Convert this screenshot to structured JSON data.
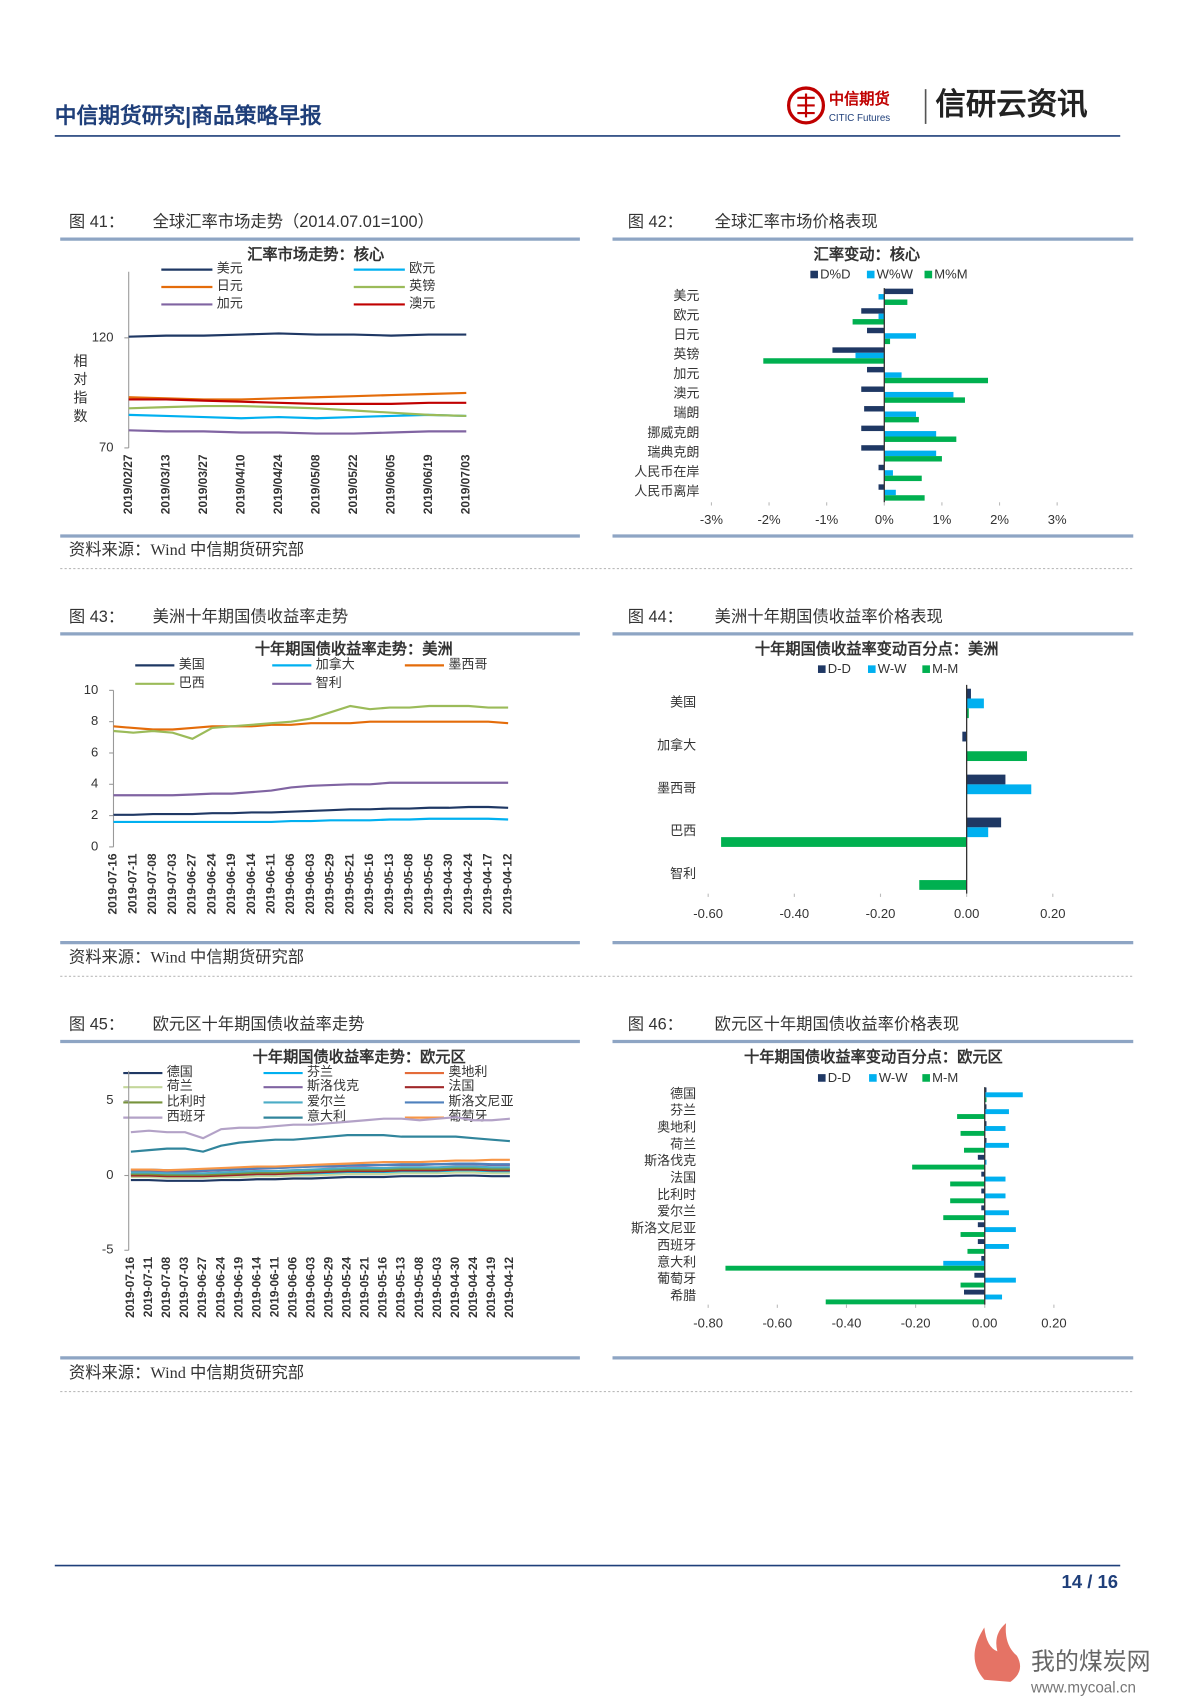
{
  "header": {
    "title": "中信期货研究|商品策略早报",
    "brand": "中信期货",
    "brand_en": "CITIC Futures",
    "slogan": "信研云资讯"
  },
  "figures": [
    {
      "number": "图 41：",
      "caption": "全球汇率市场走势（2014.07.01=100）",
      "source": "资料来源：Wind  中信期货研究部"
    },
    {
      "number": "图 42：",
      "caption": "全球汇率市场价格表现"
    },
    {
      "number": "图 43：",
      "caption": "美洲十年期国债收益率走势",
      "source": "资料来源：Wind  中信期货研究部"
    },
    {
      "number": "图 44：",
      "caption": "美洲十年期国债收益率价格表现"
    },
    {
      "number": "图 45：",
      "caption": "欧元区十年期国债收益率走势",
      "source": "资料来源：Wind  中信期货研究部"
    },
    {
      "number": "图 46：",
      "caption": "欧元区十年期国债收益率价格表现"
    }
  ],
  "chart_data": [
    {
      "type": "line",
      "title": "汇率市场走势：核心",
      "ylabel": "相对指数",
      "categories": [
        "2019/02/27",
        "2019/03/13",
        "2019/03/27",
        "2019/04/10",
        "2019/04/24",
        "2019/05/08",
        "2019/05/22",
        "2019/06/05",
        "2019/06/19",
        "2019/07/03"
      ],
      "ylim": [
        70,
        150
      ],
      "yticks": [
        70,
        120
      ],
      "series": [
        {
          "name": "美元",
          "color": "#1f3864",
          "values": [
            120.5,
            121,
            121,
            121.5,
            122,
            121.5,
            121.5,
            121,
            121.5,
            121.5
          ]
        },
        {
          "name": "欧元",
          "color": "#00b0f0",
          "values": [
            85,
            84.5,
            84,
            83.5,
            84,
            83.5,
            84,
            84.5,
            85,
            84.5
          ]
        },
        {
          "name": "日元",
          "color": "#e46c0a",
          "values": [
            93,
            92.5,
            92,
            92,
            92.5,
            93,
            93.5,
            94,
            94.5,
            95
          ]
        },
        {
          "name": "英镑",
          "color": "#9bbb59",
          "values": [
            88,
            88.5,
            89,
            89,
            88.5,
            88,
            87,
            86,
            85,
            84.5
          ]
        },
        {
          "name": "加元",
          "color": "#8064a2",
          "values": [
            78,
            77.5,
            77.5,
            77,
            77,
            76.5,
            76.5,
            77,
            77.5,
            77.5
          ]
        },
        {
          "name": "澳元",
          "color": "#c00000",
          "values": [
            92,
            92,
            91.5,
            91,
            90.5,
            90,
            90,
            90,
            90.5,
            90.5
          ]
        }
      ]
    },
    {
      "type": "hbar",
      "title": "汇率变动：核心",
      "categories": [
        "美元",
        "欧元",
        "日元",
        "英镑",
        "加元",
        "澳元",
        "瑞朗",
        "挪威克朗",
        "瑞典克朗",
        "人民币在岸",
        "人民币离岸"
      ],
      "xlim": [
        -3,
        3
      ],
      "xticks": [
        {
          "value": -3,
          "label": "-3%"
        },
        {
          "value": -2,
          "label": "-2%"
        },
        {
          "value": -1,
          "label": "-1%"
        },
        {
          "value": 0,
          "label": "0%"
        },
        {
          "value": 1,
          "label": "1%"
        },
        {
          "value": 2,
          "label": "2%"
        },
        {
          "value": 3,
          "label": "3%"
        }
      ],
      "series": [
        {
          "name": "D%D",
          "color": "#1f3864",
          "values": [
            0.5,
            -0.4,
            -0.3,
            -0.9,
            -0.3,
            -0.4,
            -0.35,
            -0.4,
            -0.4,
            -0.1,
            -0.1
          ]
        },
        {
          "name": "W%W",
          "color": "#00b0f0",
          "values": [
            -0.1,
            -0.1,
            0.55,
            -0.5,
            0.3,
            1.2,
            0.55,
            0.9,
            0.9,
            0.15,
            0.2
          ]
        },
        {
          "name": "M%M",
          "color": "#00b050",
          "values": [
            0.4,
            -0.55,
            0.1,
            -2.1,
            1.8,
            1.4,
            0.6,
            1.25,
            1.0,
            0.65,
            0.7
          ]
        }
      ]
    },
    {
      "type": "line",
      "title": "十年期国债收益率走势：美洲",
      "categories": [
        "2019-07-16",
        "2019-07-11",
        "2019-07-08",
        "2019-07-03",
        "2019-06-27",
        "2019-06-24",
        "2019-06-19",
        "2019-06-14",
        "2019-06-11",
        "2019-06-06",
        "2019-06-03",
        "2019-05-29",
        "2019-05-21",
        "2019-05-16",
        "2019-05-13",
        "2019-05-08",
        "2019-05-05",
        "2019-04-30",
        "2019-04-24",
        "2019-04-17",
        "2019-04-12"
      ],
      "ylim": [
        0,
        10
      ],
      "yticks": [
        0,
        2,
        4,
        6,
        8,
        10
      ],
      "series": [
        {
          "name": "美国",
          "color": "#1f3864",
          "values": [
            2.05,
            2.05,
            2.1,
            2.1,
            2.1,
            2.15,
            2.15,
            2.2,
            2.2,
            2.25,
            2.3,
            2.35,
            2.4,
            2.4,
            2.45,
            2.45,
            2.5,
            2.5,
            2.55,
            2.55,
            2.5
          ]
        },
        {
          "name": "加拿大",
          "color": "#00b0f0",
          "values": [
            1.6,
            1.6,
            1.6,
            1.6,
            1.6,
            1.6,
            1.6,
            1.6,
            1.6,
            1.65,
            1.65,
            1.7,
            1.7,
            1.7,
            1.75,
            1.75,
            1.8,
            1.8,
            1.8,
            1.8,
            1.75
          ]
        },
        {
          "name": "墨西哥",
          "color": "#e46c0a",
          "values": [
            7.7,
            7.6,
            7.5,
            7.5,
            7.6,
            7.7,
            7.7,
            7.7,
            7.8,
            7.8,
            7.9,
            7.9,
            7.9,
            8,
            8,
            8,
            8,
            8,
            8,
            8,
            7.9
          ]
        },
        {
          "name": "巴西",
          "color": "#9bbb59",
          "values": [
            7.4,
            7.3,
            7.4,
            7.3,
            6.9,
            7.6,
            7.7,
            7.8,
            7.9,
            8.0,
            8.2,
            8.6,
            9.0,
            8.8,
            8.9,
            8.9,
            9.0,
            9.0,
            9.0,
            8.9,
            8.9
          ]
        },
        {
          "name": "智利",
          "color": "#8064a2",
          "values": [
            3.3,
            3.3,
            3.3,
            3.3,
            3.35,
            3.4,
            3.4,
            3.5,
            3.6,
            3.8,
            3.9,
            3.95,
            4.0,
            4.0,
            4.1,
            4.1,
            4.1,
            4.1,
            4.1,
            4.1,
            4.1
          ]
        }
      ]
    },
    {
      "type": "hbar",
      "title": "十年期国债收益率变动百分点：美洲",
      "categories": [
        "美国",
        "加拿大",
        "墨西哥",
        "巴西",
        "智利"
      ],
      "xlim": [
        -0.6,
        0.2
      ],
      "xticks": [
        {
          "value": -0.6,
          "label": "-0.60"
        },
        {
          "value": -0.4,
          "label": "-0.40"
        },
        {
          "value": -0.2,
          "label": "-0.20"
        },
        {
          "value": 0,
          "label": "0.00"
        },
        {
          "value": 0.2,
          "label": "0.20"
        }
      ],
      "series": [
        {
          "name": "D-D",
          "color": "#1f3864",
          "values": [
            0.01,
            -0.01,
            0.09,
            0.08,
            0
          ]
        },
        {
          "name": "W-W",
          "color": "#00b0f0",
          "values": [
            0.04,
            0,
            0.15,
            0.05,
            0
          ]
        },
        {
          "name": "M-M",
          "color": "#00b050",
          "values": [
            0.005,
            0.14,
            0,
            -0.57,
            -0.11
          ]
        }
      ]
    },
    {
      "type": "line",
      "title": "十年期国债收益率走势：欧元区",
      "categories": [
        "2019-07-16",
        "2019-07-11",
        "2019-07-08",
        "2019-07-03",
        "2019-06-27",
        "2019-06-24",
        "2019-06-19",
        "2019-06-14",
        "2019-06-11",
        "2019-06-06",
        "2019-06-03",
        "2019-05-29",
        "2019-05-24",
        "2019-05-21",
        "2019-05-16",
        "2019-05-13",
        "2019-05-08",
        "2019-05-03",
        "2019-04-30",
        "2019-04-24",
        "2019-04-19",
        "2019-04-12"
      ],
      "ylim": [
        -5,
        7
      ],
      "yticks": [
        -5,
        0,
        5
      ],
      "series": [
        {
          "name": "德国",
          "color": "#1f3864",
          "values": [
            -0.3,
            -0.3,
            -0.35,
            -0.35,
            -0.35,
            -0.3,
            -0.3,
            -0.25,
            -0.25,
            -0.2,
            -0.2,
            -0.15,
            -0.1,
            -0.1,
            -0.1,
            -0.05,
            -0.05,
            -0.05,
            0,
            0,
            -0.05,
            -0.05
          ]
        },
        {
          "name": "芬兰",
          "color": "#00b0f0",
          "values": [
            0,
            0,
            -0.05,
            -0.05,
            -0.05,
            0,
            0,
            0.05,
            0.05,
            0.1,
            0.1,
            0.15,
            0.2,
            0.2,
            0.2,
            0.25,
            0.25,
            0.25,
            0.3,
            0.3,
            0.25,
            0.25
          ]
        },
        {
          "name": "奥地利",
          "color": "#e46c3a",
          "values": [
            0.1,
            0.1,
            0.05,
            0.05,
            0.05,
            0.1,
            0.1,
            0.15,
            0.15,
            0.2,
            0.2,
            0.25,
            0.3,
            0.3,
            0.3,
            0.35,
            0.35,
            0.35,
            0.4,
            0.4,
            0.35,
            0.35
          ]
        },
        {
          "name": "荷兰",
          "color": "#c4d79b",
          "values": [
            -0.1,
            -0.1,
            -0.15,
            -0.15,
            -0.15,
            -0.1,
            -0.1,
            -0.05,
            -0.05,
            0,
            0,
            0.05,
            0.1,
            0.1,
            0.1,
            0.15,
            0.15,
            0.15,
            0.2,
            0.2,
            0.15,
            0.15
          ]
        },
        {
          "name": "斯洛伐克",
          "color": "#8064a2",
          "values": [
            0.3,
            0.3,
            0.25,
            0.25,
            0.3,
            0.35,
            0.4,
            0.45,
            0.5,
            0.55,
            0.6,
            0.6,
            0.65,
            0.65,
            0.7,
            0.7,
            0.7,
            0.75,
            0.75,
            0.75,
            0.7,
            0.7
          ]
        },
        {
          "name": "法国",
          "color": "#a0282a",
          "values": [
            0,
            0,
            -0.05,
            -0.05,
            -0.05,
            0,
            0.05,
            0.1,
            0.1,
            0.15,
            0.2,
            0.25,
            0.3,
            0.3,
            0.3,
            0.35,
            0.35,
            0.35,
            0.4,
            0.4,
            0.35,
            0.35
          ]
        },
        {
          "name": "比利时",
          "color": "#77933c",
          "values": [
            0.1,
            0.1,
            0.05,
            0.05,
            0.05,
            0.1,
            0.15,
            0.2,
            0.2,
            0.25,
            0.3,
            0.35,
            0.4,
            0.4,
            0.4,
            0.45,
            0.45,
            0.45,
            0.5,
            0.5,
            0.45,
            0.45
          ]
        },
        {
          "name": "爱尔兰",
          "color": "#4bacc6",
          "values": [
            0.2,
            0.2,
            0.15,
            0.15,
            0.15,
            0.2,
            0.25,
            0.3,
            0.3,
            0.35,
            0.4,
            0.45,
            0.5,
            0.5,
            0.5,
            0.55,
            0.55,
            0.55,
            0.6,
            0.6,
            0.55,
            0.55
          ]
        },
        {
          "name": "斯洛文尼亚",
          "color": "#4f81bd",
          "values": [
            0.4,
            0.4,
            0.35,
            0.35,
            0.35,
            0.4,
            0.45,
            0.5,
            0.5,
            0.55,
            0.6,
            0.65,
            0.7,
            0.7,
            0.7,
            0.75,
            0.75,
            0.75,
            0.8,
            0.8,
            0.75,
            0.75
          ]
        },
        {
          "name": "西班牙",
          "color": "#b3a2c7",
          "values": [
            2.9,
            3.0,
            2.9,
            2.9,
            2.5,
            3.1,
            3.2,
            3.2,
            3.3,
            3.4,
            3.4,
            3.5,
            3.6,
            3.7,
            3.8,
            3.8,
            3.7,
            3.8,
            3.9,
            3.7,
            3.7,
            3.8
          ]
        },
        {
          "name": "意大利",
          "color": "#31859c",
          "values": [
            1.6,
            1.7,
            1.8,
            1.8,
            1.6,
            2.0,
            2.2,
            2.3,
            2.4,
            2.4,
            2.5,
            2.6,
            2.7,
            2.7,
            2.7,
            2.6,
            2.6,
            2.6,
            2.6,
            2.5,
            2.4,
            2.3
          ]
        },
        {
          "name": "葡萄牙",
          "color": "#f79646",
          "values": [
            0.4,
            0.4,
            0.35,
            0.4,
            0.45,
            0.5,
            0.55,
            0.6,
            0.6,
            0.65,
            0.7,
            0.75,
            0.8,
            0.85,
            0.9,
            0.9,
            0.9,
            0.95,
            1.0,
            1.0,
            1.05,
            1.05
          ]
        }
      ]
    },
    {
      "type": "hbar",
      "title": "十年期国债收益率变动百分点：欧元区",
      "categories": [
        "德国",
        "芬兰",
        "奥地利",
        "荷兰",
        "斯洛伐克",
        "法国",
        "比利时",
        "爱尔兰",
        "斯洛文尼亚",
        "西班牙",
        "意大利",
        "葡萄牙",
        "希腊"
      ],
      "xlim": [
        -0.8,
        0.2
      ],
      "xticks": [
        {
          "value": -0.8,
          "label": "-0.80"
        },
        {
          "value": -0.6,
          "label": "-0.60"
        },
        {
          "value": -0.4,
          "label": "-0.40"
        },
        {
          "value": -0.2,
          "label": "-0.20"
        },
        {
          "value": 0,
          "label": "0.00"
        },
        {
          "value": 0.2,
          "label": "0.20"
        }
      ],
      "series": [
        {
          "name": "D-D",
          "color": "#1f3864",
          "values": [
            0.005,
            0.005,
            0.005,
            0.005,
            -0.02,
            -0.01,
            -0.01,
            -0.01,
            -0.02,
            -0.02,
            -0.01,
            -0.03,
            -0.06
          ]
        },
        {
          "name": "W-W",
          "color": "#00b0f0",
          "values": [
            0.11,
            0.07,
            0.06,
            0.07,
            0.005,
            0.06,
            0.06,
            0.07,
            0.09,
            0.07,
            -0.12,
            0.09,
            0.05
          ]
        },
        {
          "name": "M-M",
          "color": "#00b050",
          "values": [
            0.005,
            -0.08,
            -0.07,
            -0.06,
            -0.21,
            -0.1,
            -0.1,
            -0.12,
            -0.07,
            -0.05,
            -0.75,
            -0.07,
            -0.46
          ]
        }
      ]
    }
  ],
  "footer": {
    "page": "14 / 16"
  },
  "watermark": {
    "name": "我的煤炭网",
    "url": "www.mycoal.cn"
  }
}
